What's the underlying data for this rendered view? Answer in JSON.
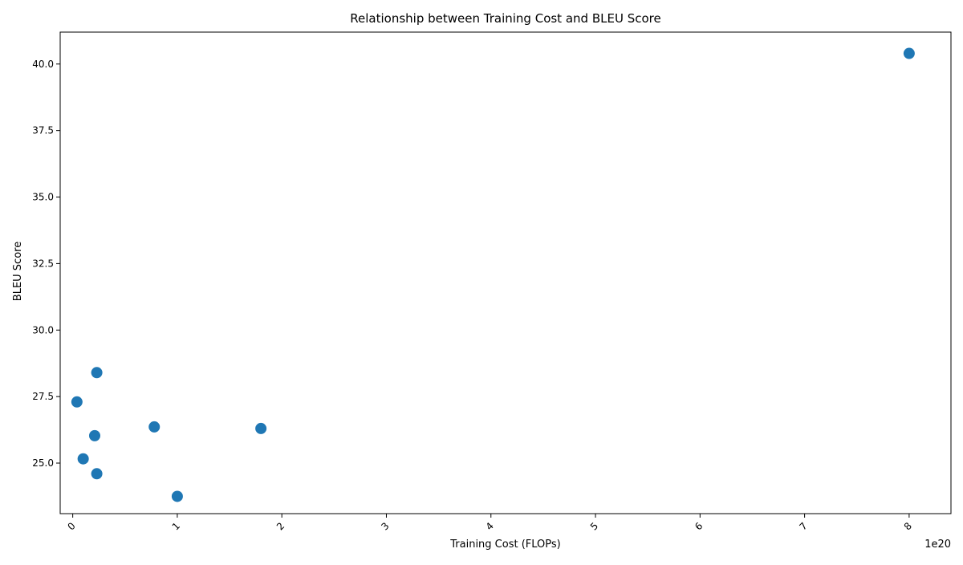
{
  "chart_data": {
    "type": "scatter",
    "title": "Relationship between Training Cost and BLEU Score",
    "xlabel": "Training Cost (FLOPs)",
    "ylabel": "BLEU Score",
    "x_offset_label": "1e20",
    "x_scale_exponent": 20,
    "xlim": [
      -0.12,
      8.4
    ],
    "ylim": [
      23.1,
      41.2
    ],
    "xticks": [
      0,
      1,
      2,
      3,
      4,
      5,
      6,
      7,
      8
    ],
    "xtick_labels": [
      "0",
      "1",
      "2",
      "3",
      "4",
      "5",
      "6",
      "7",
      "8"
    ],
    "yticks": [
      25.0,
      27.5,
      30.0,
      32.5,
      35.0,
      37.5,
      40.0
    ],
    "ytick_labels": [
      "25.0",
      "27.5",
      "30.0",
      "32.5",
      "35.0",
      "37.5",
      "40.0"
    ],
    "marker_color": "#1f77b4",
    "grid": false,
    "points": [
      {
        "x": 0.04,
        "y": 27.3
      },
      {
        "x": 0.1,
        "y": 25.16
      },
      {
        "x": 0.21,
        "y": 26.03
      },
      {
        "x": 0.23,
        "y": 28.4
      },
      {
        "x": 0.23,
        "y": 24.6
      },
      {
        "x": 0.78,
        "y": 26.36
      },
      {
        "x": 1.0,
        "y": 23.75
      },
      {
        "x": 1.8,
        "y": 26.3
      },
      {
        "x": 8.0,
        "y": 40.4
      }
    ]
  }
}
